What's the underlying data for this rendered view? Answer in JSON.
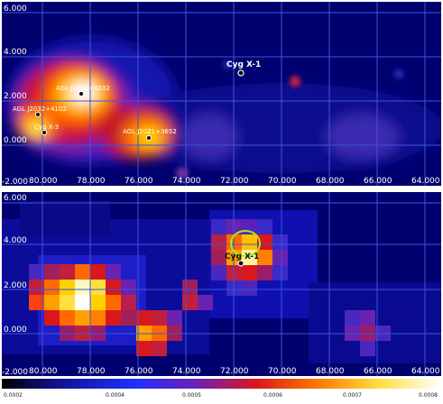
{
  "top_panel": {
    "x_ticks": [
      "80.000",
      "78.000",
      "76.000",
      "74.000",
      "72.000",
      "70.000",
      "68.000",
      "66.000",
      "64.000"
    ],
    "y_ticks": [
      "6.000",
      "4.000",
      "2.000",
      "0.000",
      "-2.000"
    ],
    "labels": {
      "agl_2022": "AGL J2022+4032",
      "agl_2032": "AGL J2032+4102",
      "cyg_x3": "Cyg X-3",
      "agl_2021": "AGL J2021+3652",
      "cyg_x1": "Cyg X-1"
    }
  },
  "bottom_panel": {
    "x_ticks": [
      "80.000",
      "78.000",
      "76.000",
      "74.000",
      "72.000",
      "70.000",
      "68.000",
      "66.000",
      "64.000"
    ],
    "y_ticks": [
      "6.000",
      "4.000",
      "2.000",
      "0.000",
      "-2.000"
    ],
    "labels": {
      "cyg_x1": "Cyg X-1"
    }
  },
  "colorbar": {
    "ticks": [
      "0.0002",
      "0.0004",
      "0.0005",
      "0.0006",
      "0.0007",
      "0.0008"
    ]
  },
  "colors": {
    "grid": "#3b56d8",
    "background": "#000088",
    "contour": "#9ef01a"
  }
}
